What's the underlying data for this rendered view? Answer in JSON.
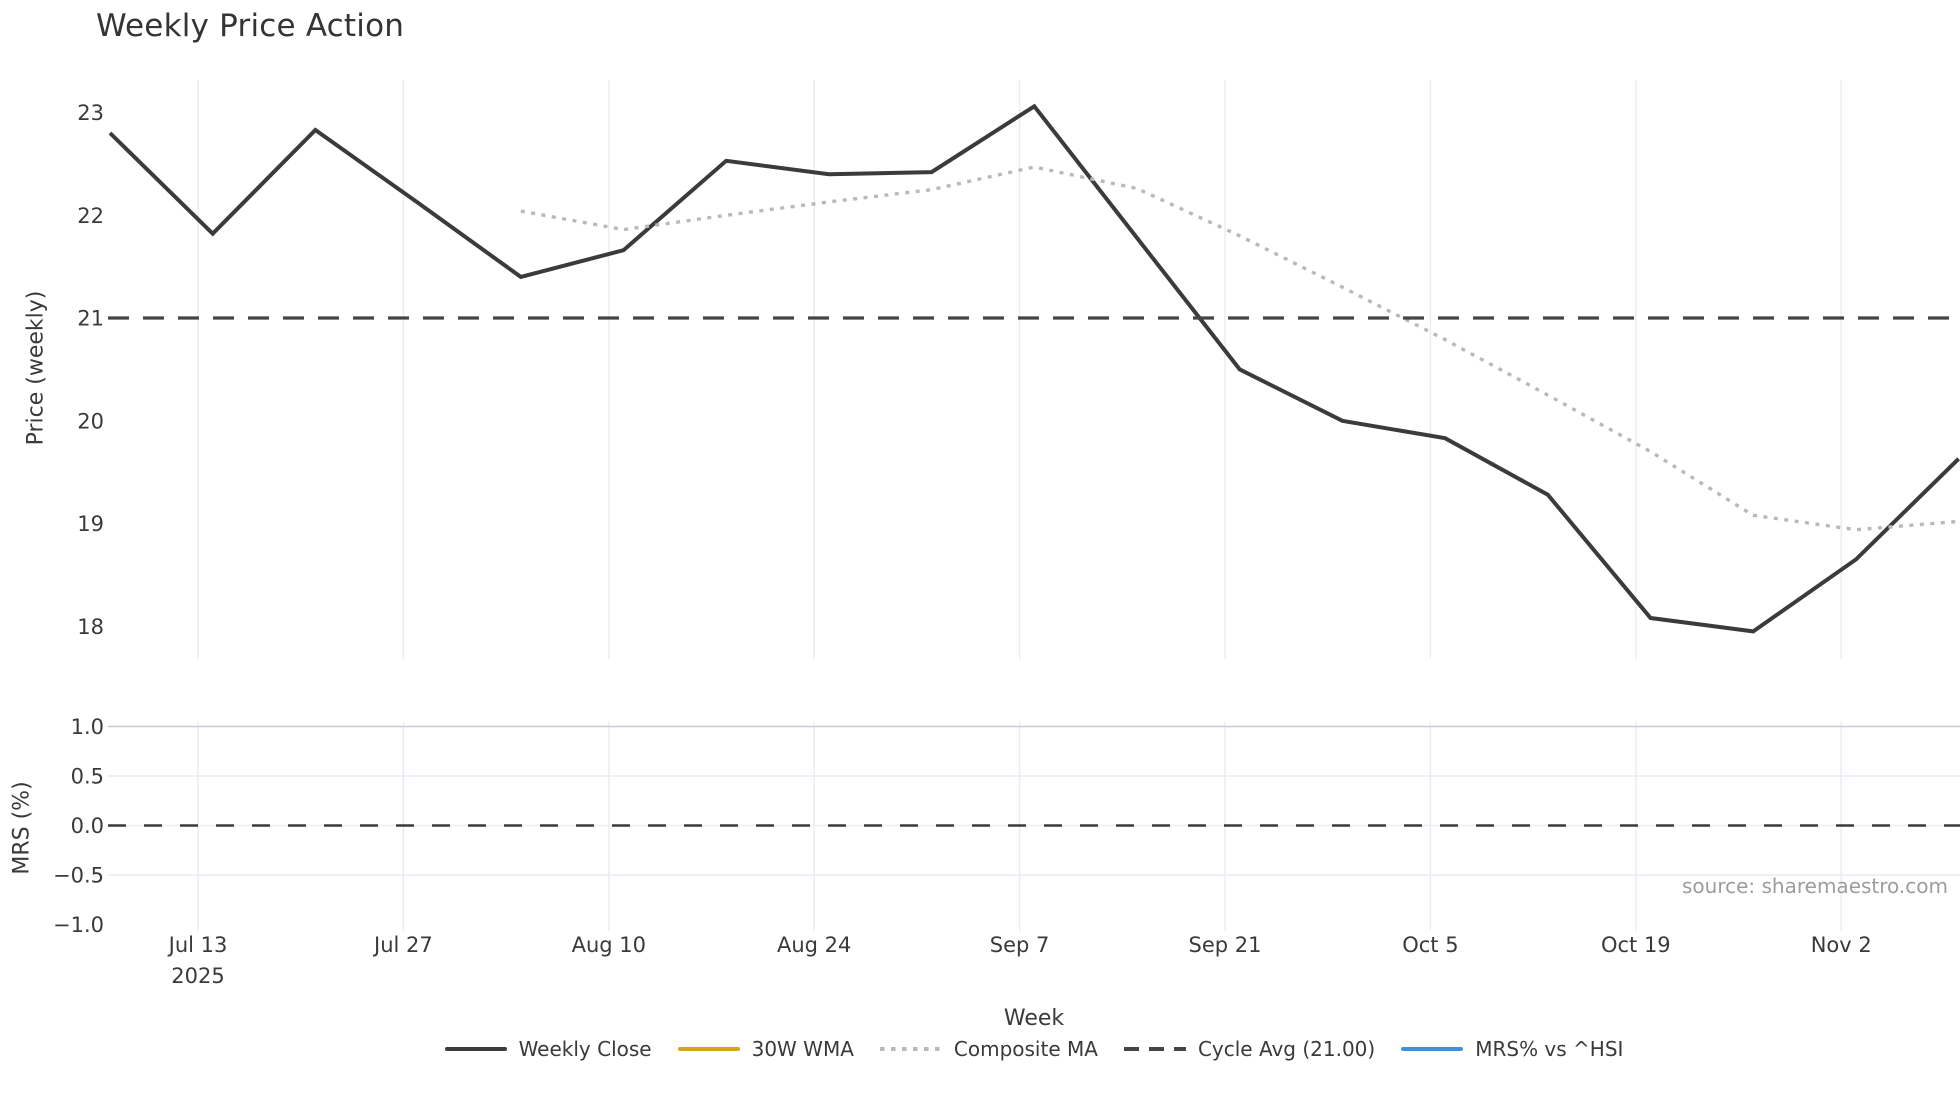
{
  "title": "Weekly Price Action",
  "source": "source: sharemaestro.com",
  "price_axis": {
    "label": "Price (weekly)",
    "ticks": [
      "23",
      "22",
      "21",
      "20",
      "19",
      "18"
    ],
    "tick_values": [
      23,
      22,
      21,
      20,
      19,
      18
    ]
  },
  "mrs_axis": {
    "label": "MRS (%)",
    "ticks": [
      "1.0",
      "0.5",
      "0.0",
      "−0.5",
      "−1.0"
    ],
    "tick_values": [
      1.0,
      0.5,
      0.0,
      -0.5,
      -1.0
    ]
  },
  "x_axis": {
    "label": "Week",
    "ticks": [
      {
        "label": "Jul 13",
        "sub": "2025",
        "pos": 0.857
      },
      {
        "label": "Jul 27",
        "sub": "",
        "pos": 2.857
      },
      {
        "label": "Aug 10",
        "sub": "",
        "pos": 4.857
      },
      {
        "label": "Aug 24",
        "sub": "",
        "pos": 6.857
      },
      {
        "label": "Sep 7",
        "sub": "",
        "pos": 8.857
      },
      {
        "label": "Sep 21",
        "sub": "",
        "pos": 10.857
      },
      {
        "label": "Oct 5",
        "sub": "",
        "pos": 12.857
      },
      {
        "label": "Oct 19",
        "sub": "",
        "pos": 14.857
      },
      {
        "label": "Nov 2",
        "sub": "",
        "pos": 16.857
      }
    ]
  },
  "legend": [
    {
      "label": "Weekly Close",
      "color": "#3b3b3b",
      "style": "solid"
    },
    {
      "label": "30W WMA",
      "color": "#d6a41f",
      "style": "solid"
    },
    {
      "label": "Composite MA",
      "color": "#b9b9b9",
      "style": "dotted"
    },
    {
      "label": "Cycle Avg (21.00)",
      "color": "#454545",
      "style": "dashed"
    },
    {
      "label": "MRS% vs ^HSI",
      "color": "#3f8fdf",
      "style": "solid"
    }
  ],
  "colors": {
    "weekly_close": "#3b3b3b",
    "composite_ma": "#b9b9b9",
    "cycle_avg": "#454545",
    "wma_30": "#d6a41f",
    "mrs_line": "#3f8fdf",
    "grid": "#e9ebf4",
    "grid_dark": "#c9cbd2",
    "tick_text": "#3a3a3a"
  },
  "chart_data": {
    "type": "line",
    "panels": [
      "Price (weekly)",
      "MRS (%)"
    ],
    "x": [
      "Jul 7",
      "Jul 14",
      "Jul 21",
      "Jul 28",
      "Aug 4",
      "Aug 11",
      "Aug 18",
      "Aug 25",
      "Sep 1",
      "Sep 8",
      "Sep 15",
      "Sep 22",
      "Sep 29",
      "Oct 6",
      "Oct 13",
      "Oct 20",
      "Oct 27",
      "Nov 3",
      "Nov 10"
    ],
    "series": [
      {
        "name": "Weekly Close",
        "panel": "price",
        "line": "solid",
        "values": [
          22.8,
          21.82,
          22.83,
          22.12,
          21.4,
          21.66,
          22.53,
          22.4,
          22.42,
          23.06,
          21.78,
          20.5,
          20.0,
          19.83,
          19.28,
          18.08,
          17.95,
          18.65,
          19.63
        ]
      },
      {
        "name": "Composite MA",
        "panel": "price",
        "line": "dotted",
        "values": [
          null,
          null,
          null,
          null,
          22.04,
          21.86,
          22.0,
          22.13,
          22.25,
          22.47,
          22.26,
          21.8,
          21.3,
          20.79,
          20.25,
          19.7,
          19.08,
          18.94,
          19.02
        ]
      },
      {
        "name": "Cycle Avg",
        "panel": "price",
        "line": "dashed",
        "constant": 21.0
      },
      {
        "name": "30W WMA",
        "panel": "price",
        "line": "solid",
        "values": []
      },
      {
        "name": "MRS% vs ^HSI",
        "panel": "mrs",
        "line": "solid",
        "values": []
      },
      {
        "name": "MRS zero line",
        "panel": "mrs",
        "line": "dashed",
        "constant": 0.0
      }
    ],
    "title": "Weekly Price Action",
    "xlabel": "Week",
    "ylabel_price": "Price (weekly)",
    "ylabel_mrs": "MRS (%)",
    "price_ylim": [
      17.68,
      23.32
    ],
    "mrs_ylim": [
      -1.05,
      1.05
    ],
    "grid": true,
    "legend_position": "bottom"
  }
}
